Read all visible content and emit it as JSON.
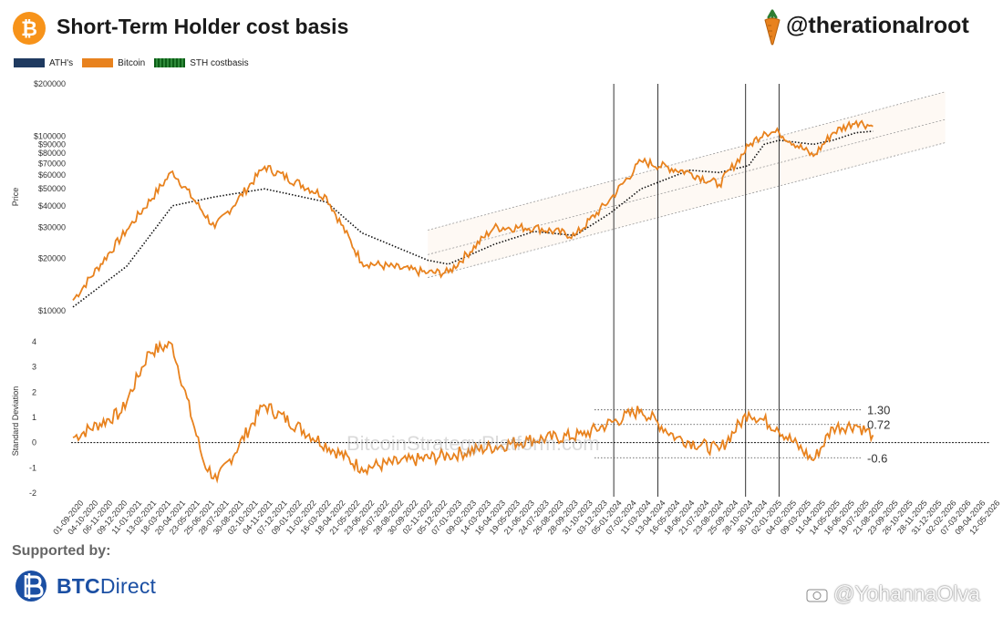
{
  "header": {
    "title": "Short-Term Holder cost basis",
    "handle": "@therationalroot",
    "logo_symbol": "₿"
  },
  "legend": [
    {
      "label": "ATH's",
      "color": "#1f3a60"
    },
    {
      "label": "Bitcoin",
      "color": "#e8821e"
    },
    {
      "label": "STH costbasis",
      "color": "#0b5e16"
    }
  ],
  "footer": {
    "supported_by": "Supported by:",
    "sponsor_bold": "BTC",
    "sponsor_rest": "Direct",
    "credit": "@YohannaOlva"
  },
  "watermark": "BitcoinStrategyPlatform.com",
  "colors": {
    "bitcoin": "#e8821e",
    "sth": "#111111",
    "ath": "#111111",
    "channel": "#888888",
    "accent_btc": "#f7931a",
    "sponsor": "#1b4fa3"
  },
  "chart_data": [
    {
      "type": "line",
      "title": "Short-Term Holder cost basis",
      "ylabel": "Price",
      "yscale": "log",
      "ylim": [
        10000,
        200000
      ],
      "yticks": [
        10000,
        20000,
        30000,
        40000,
        50000,
        60000,
        70000,
        80000,
        90000,
        100000,
        200000
      ],
      "ytick_labels": [
        "$10000",
        "$20000",
        "$30000",
        "$40000",
        "$50000",
        "$60000",
        "$70000",
        "$80000",
        "$90000",
        "$100000",
        "$200000"
      ],
      "x_dates": [
        "2020-09-01",
        "2021-01-01",
        "2021-04-15",
        "2021-07-20",
        "2021-11-10",
        "2022-03-30",
        "2022-06-18",
        "2022-11-15",
        "2023-01-01",
        "2023-04-14",
        "2023-07-15",
        "2023-10-15",
        "2024-01-01",
        "2024-03-13",
        "2024-07-01",
        "2024-09-06",
        "2024-11-12",
        "2024-12-17",
        "2025-01-20",
        "2025-04-08",
        "2025-05-22",
        "2025-07-14",
        "2025-08-21"
      ],
      "series": [
        {
          "name": "Bitcoin",
          "values": [
            11500,
            29000,
            63000,
            30000,
            67000,
            45000,
            19000,
            16500,
            16600,
            30000,
            30000,
            27000,
            43000,
            72000,
            62000,
            53000,
            88000,
            106000,
            105000,
            77000,
            105000,
            122000,
            114000
          ]
        },
        {
          "name": "STH costbasis",
          "values": [
            10500,
            18000,
            40000,
            45000,
            50000,
            42000,
            28000,
            19500,
            18500,
            24000,
            28500,
            27000,
            36000,
            50000,
            64000,
            62000,
            68000,
            90000,
            95000,
            90000,
            95000,
            105000,
            107000
          ]
        }
      ],
      "channel": {
        "start_date": "2022-11-15",
        "end_date": "2026-02-01",
        "upper": [
          29000,
          180000
        ],
        "middle": [
          21000,
          125000
        ],
        "lower": [
          15500,
          92000
        ]
      },
      "vlines": [
        "2024-01-11",
        "2024-04-20",
        "2024-11-05",
        "2025-01-20"
      ]
    },
    {
      "type": "line",
      "ylabel": "Standard Deviation",
      "ylim": [
        -2,
        4
      ],
      "yticks": [
        -2,
        -1,
        0,
        1,
        2,
        3,
        4
      ],
      "ytick_labels": [
        "-2",
        "-1",
        "0",
        "1",
        "2",
        "3",
        "4"
      ],
      "x_dates": [
        "2020-09-01",
        "2020-12-20",
        "2021-02-21",
        "2021-04-14",
        "2021-06-25",
        "2021-07-25",
        "2021-11-08",
        "2022-06-18",
        "2023-01-01",
        "2023-07-01",
        "2023-11-01",
        "2024-03-13",
        "2024-06-01",
        "2024-09-06",
        "2024-11-12",
        "2025-01-15",
        "2025-04-08",
        "2025-05-22",
        "2025-07-14",
        "2025-08-21"
      ],
      "series": [
        {
          "name": "Bitcoin",
          "values": [
            0.2,
            1.2,
            3.6,
            3.9,
            -0.8,
            -1.5,
            1.5,
            -1.0,
            -0.5,
            0.1,
            0.3,
            1.3,
            0.2,
            -0.3,
            1.2,
            0.6,
            -0.7,
            0.6,
            0.7,
            0.3
          ]
        }
      ],
      "reference_lines": [
        {
          "value": 1.3,
          "label": "1.30"
        },
        {
          "value": 0.72,
          "label": "0.72"
        },
        {
          "value": -0.6,
          "label": "-0.6"
        }
      ],
      "x_tick_labels": [
        "01-09-2020",
        "04-10-2020",
        "06-11-2020",
        "09-12-2020",
        "11-01-2021",
        "13-02-2021",
        "18-03-2021",
        "20-04-2021",
        "23-05-2021",
        "25-06-2021",
        "28-07-2021",
        "30-08-2021",
        "02-10-2021",
        "04-11-2021",
        "07-12-2021",
        "09-01-2022",
        "11-02-2022",
        "16-03-2022",
        "18-04-2022",
        "21-05-2022",
        "23-06-2022",
        "26-07-2022",
        "28-08-2022",
        "30-09-2022",
        "02-11-2022",
        "05-12-2022",
        "07-01-2023",
        "09-02-2023",
        "14-03-2023",
        "16-04-2023",
        "19-05-2023",
        "21-06-2023",
        "24-07-2023",
        "26-08-2023",
        "28-09-2023",
        "31-10-2023",
        "03-12-2023",
        "05-01-2024",
        "07-02-2024",
        "11-03-2024",
        "13-04-2024",
        "16-05-2024",
        "18-06-2024",
        "21-07-2024",
        "23-08-2024",
        "25-09-2024",
        "28-10-2024",
        "30-11-2024",
        "02-01-2025",
        "04-02-2025",
        "09-03-2025",
        "11-04-2025",
        "14-05-2025",
        "16-06-2025",
        "19-07-2025",
        "21-08-2025",
        "23-09-2025",
        "26-10-2025",
        "28-11-2025",
        "31-12-2025",
        "02-02-2026",
        "07-03-2026",
        "09-04-2026",
        "12-05-2026"
      ]
    }
  ]
}
